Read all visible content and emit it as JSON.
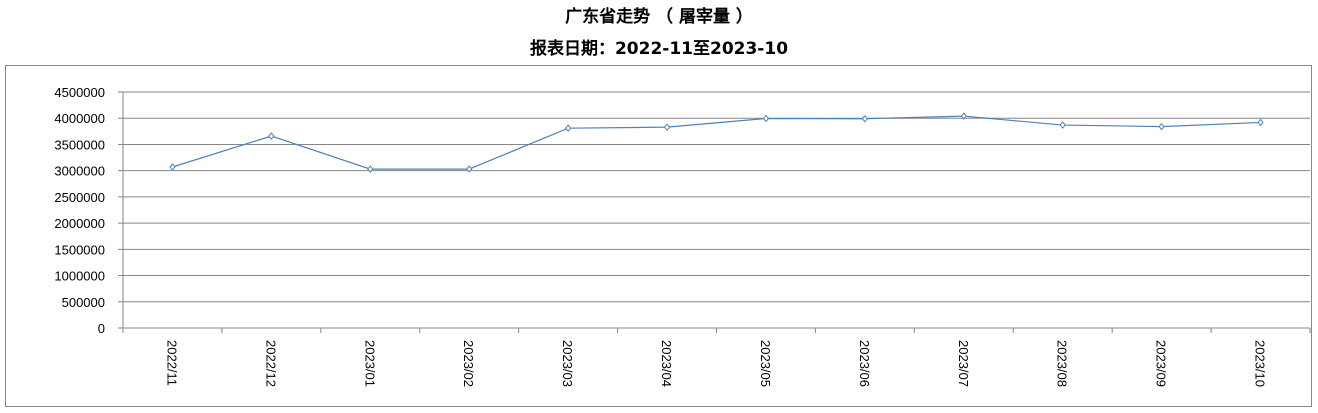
{
  "title": "广东省走势 （ 屠宰量 ）",
  "subtitle": "报表日期：2022-11至2023-10",
  "chart_data": {
    "type": "line",
    "title": "广东省走势 （ 屠宰量 ）",
    "subtitle": "报表日期：2022-11至2023-10",
    "categories": [
      "2022/11",
      "2022/12",
      "2023/01",
      "2023/02",
      "2023/03",
      "2023/04",
      "2023/05",
      "2023/06",
      "2023/07",
      "2023/08",
      "2023/09",
      "2023/10"
    ],
    "values": [
      3070000,
      3660000,
      3030000,
      3030000,
      3810000,
      3830000,
      3995000,
      3990000,
      4040000,
      3870000,
      3840000,
      3920000
    ],
    "ylim": [
      0,
      4500000
    ],
    "yticks": [
      "0",
      "500000",
      "1000000",
      "1500000",
      "2000000",
      "2500000",
      "3000000",
      "3500000",
      "4000000",
      "4500000"
    ],
    "grid": true,
    "legend": "none",
    "line_color": "#4f81bd",
    "marker": "diamond"
  }
}
